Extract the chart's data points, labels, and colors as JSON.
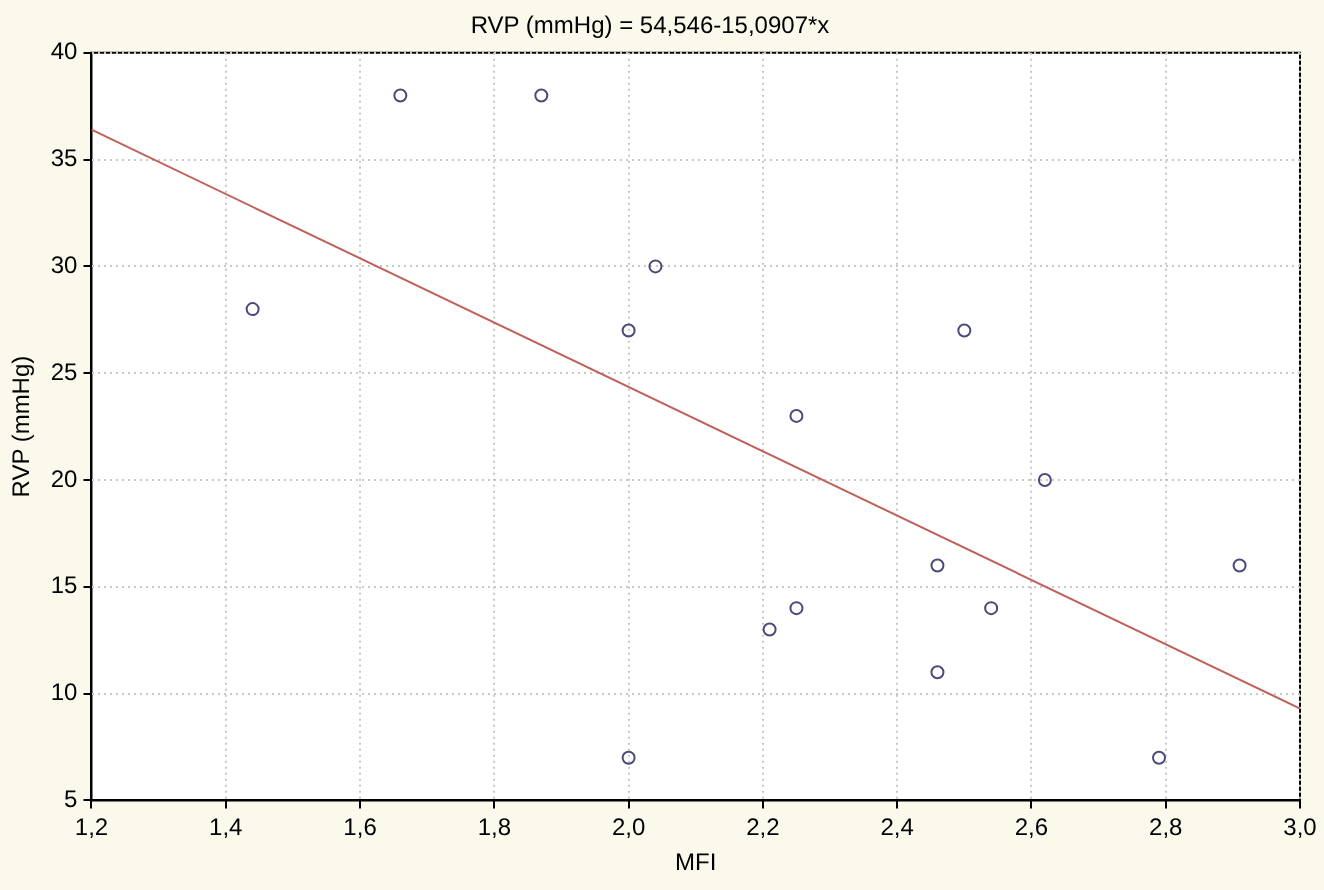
{
  "chart_data": {
    "type": "scatter",
    "title": "RVP (mmHg) = 54,546-15,0907*x",
    "xlabel": "MFI",
    "ylabel": "RVP (mmHg)",
    "series": [
      {
        "type": "scatter",
        "color": "#4a4a7a",
        "marker": "circle",
        "x": [
          1.44,
          1.66,
          1.87,
          2.0,
          2.04,
          2.0,
          2.21,
          2.25,
          2.25,
          2.46,
          2.46,
          2.5,
          2.54,
          2.62,
          2.79,
          2.91
        ],
        "values": [
          28,
          38,
          38,
          27,
          30,
          7,
          13,
          14,
          23,
          16,
          11,
          27,
          14,
          20,
          7,
          16
        ]
      },
      {
        "type": "line",
        "color": "#c0605a",
        "marker": "none",
        "line_style": "solid",
        "x": [
          1.2,
          3.0
        ],
        "values": [
          36.4,
          9.3
        ]
      }
    ],
    "xlim": [
      1.2,
      3.0
    ],
    "ylim": [
      5,
      40
    ],
    "xticks": [
      {
        "value": 1.2,
        "label": "1,2"
      },
      {
        "value": 1.4,
        "label": "1,4"
      },
      {
        "value": 1.6,
        "label": "1,6"
      },
      {
        "value": 1.8,
        "label": "1,8"
      },
      {
        "value": 2.0,
        "label": "2,0"
      },
      {
        "value": 2.2,
        "label": "2,2"
      },
      {
        "value": 2.4,
        "label": "2,4"
      },
      {
        "value": 2.6,
        "label": "2,6"
      },
      {
        "value": 2.8,
        "label": "2,8"
      },
      {
        "value": 3.0,
        "label": "3,0"
      }
    ],
    "yticks": [
      5,
      10,
      15,
      20,
      25,
      30,
      35,
      40
    ],
    "grid": true,
    "legend": false
  }
}
